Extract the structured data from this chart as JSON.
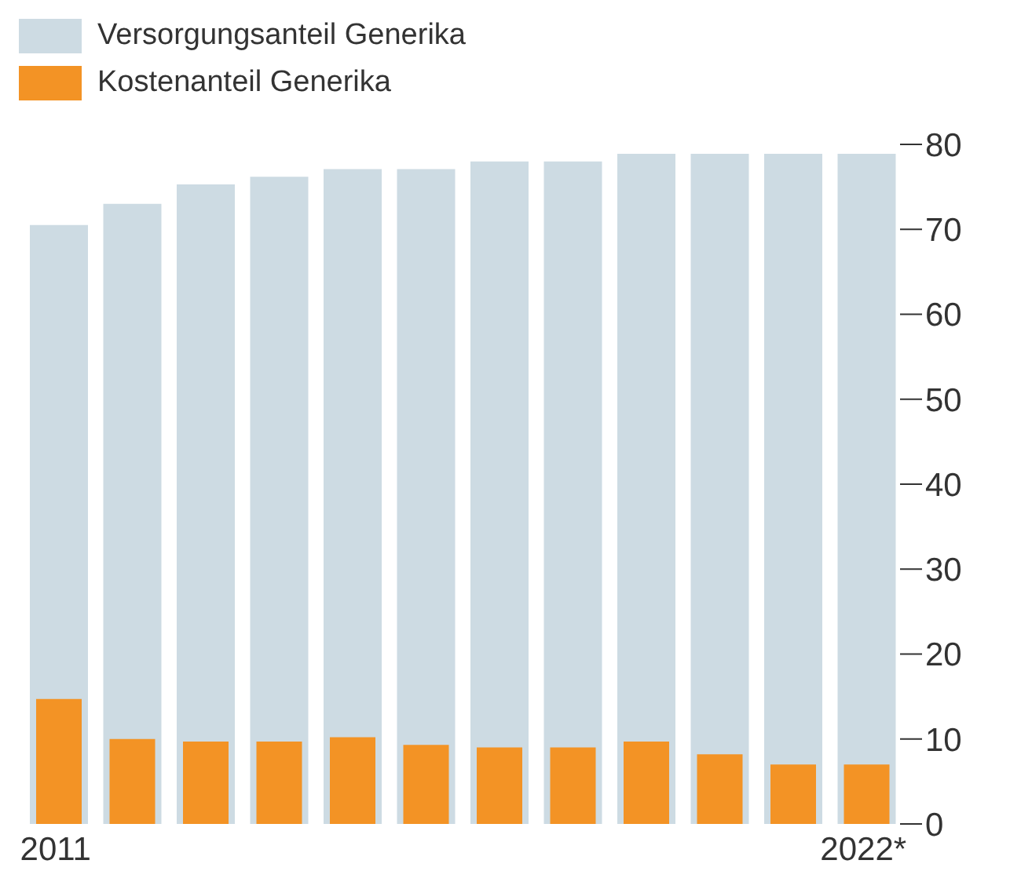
{
  "chart_data": {
    "type": "bar",
    "categories": [
      "2011",
      null,
      null,
      null,
      null,
      null,
      null,
      null,
      null,
      null,
      null,
      "2022*"
    ],
    "series": [
      {
        "name": "Versorgungsanteil Generika",
        "color": "#cddbe3",
        "values": [
          70.5,
          73,
          75.3,
          76.2,
          77.1,
          77.1,
          78,
          78,
          78.9,
          78.9,
          78.9,
          78.9
        ]
      },
      {
        "name": "Kostenanteil Generika",
        "color": "#f39325",
        "values": [
          14.7,
          10,
          9.7,
          9.7,
          10.2,
          9.3,
          9,
          9,
          9.7,
          8.2,
          7,
          7
        ]
      }
    ],
    "ylim": [
      0,
      80
    ],
    "yticks": [
      0,
      10,
      20,
      30,
      40,
      50,
      60,
      70,
      80
    ],
    "legend": "top left"
  }
}
